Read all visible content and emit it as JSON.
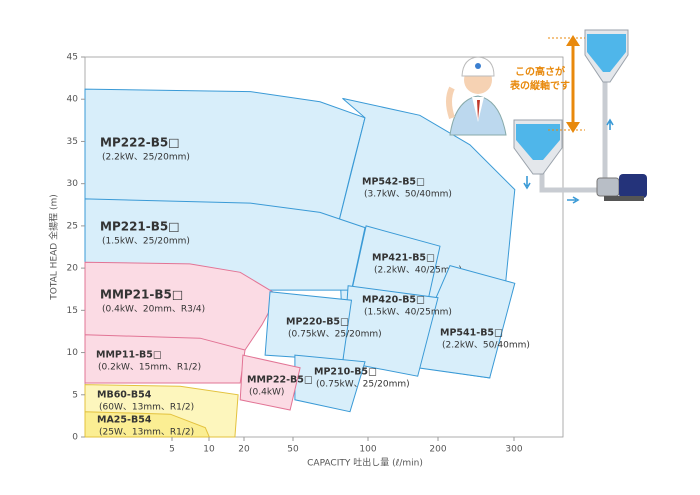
{
  "chart_data": {
    "type": "region",
    "xlabel": "CAPACITY 吐出し量 (ℓ/min)",
    "ylabel": "TOTAL HEAD 全揚程 (m)",
    "xlim": [
      0,
      360
    ],
    "ylim": [
      0,
      45
    ],
    "xticks": [
      5,
      10,
      20,
      50,
      100,
      200,
      300
    ],
    "yticks": [
      0,
      5,
      10,
      15,
      20,
      25,
      30,
      35,
      40,
      45
    ],
    "regions": [
      {
        "name": "MP222-B5□",
        "spec": "(2.2kW、25/20mm)",
        "color": "#3a9ad6",
        "fill": "#d8eefa",
        "x": [
          0,
          24,
          68,
          98,
          89,
          80,
          0
        ],
        "y": [
          41.2,
          40.9,
          39.7,
          37.8,
          31.6,
          25.1,
          25.1
        ]
      },
      {
        "name": "MP542-B5□",
        "spec": "(3.7kW、50/40mm)",
        "color": "#3a9ad6",
        "fill": "#d8eefa",
        "x": [
          83,
          174,
          242,
          301,
          288,
          268,
          174,
          83,
          80,
          98
        ],
        "y": [
          40.1,
          38.1,
          34.6,
          29.3,
          17.4,
          7.0,
          8.2,
          12.7,
          25.1,
          37.8
        ]
      },
      {
        "name": "MP221-B5□",
        "spec": "(1.5kW、25/20mm)",
        "color": "#3a9ad6",
        "fill": "#d8eefa",
        "x": [
          0,
          24,
          68,
          98,
          89,
          0
        ],
        "y": [
          28.2,
          27.7,
          26.6,
          24.8,
          17.4,
          17.4
        ]
      },
      {
        "name": "MP421-B5□",
        "spec": "(2.2kW、40/25mm)",
        "color": "#3a9ad6",
        "fill": "#d8eefa",
        "x": [
          98.7,
          202.6,
          185.7,
          89
        ],
        "y": [
          25.0,
          22.6,
          16.2,
          17.2
        ]
      },
      {
        "name": "MP541-B5□",
        "spec": "(2.2kW、50/40mm)",
        "color": "#3a9ad6",
        "fill": "#d8eefa",
        "x": [
          215.8,
          301,
          268,
          171,
          195.7
        ],
        "y": [
          20.3,
          18.2,
          7.0,
          8.2,
          16.2
        ]
      },
      {
        "name": "MP420-B5□",
        "spec": "(1.5kW、40/25mm)",
        "color": "#3a9ad6",
        "fill": "#d8eefa",
        "x": [
          86.7,
          200,
          171,
          83.3
        ],
        "y": [
          17.9,
          16.5,
          7.2,
          8.9
        ]
      },
      {
        "name": "MMP21-B5□",
        "spec": "(0.4kW、20mm、R3/4)",
        "color": "#e27495",
        "fill": "#fbdbe4",
        "x": [
          0,
          7.4,
          18.9,
          40.8,
          31,
          20.6,
          0
        ],
        "y": [
          20.7,
          20.5,
          19.5,
          16.8,
          13.3,
          10.3,
          10.3
        ]
      },
      {
        "name": "MP220-B5□",
        "spec": "(0.75kW、25/20mm)",
        "color": "#3a9ad6",
        "fill": "#d8eefa",
        "x": [
          35.9,
          89,
          83.3,
          32.9
        ],
        "y": [
          17.2,
          16.2,
          9.1,
          9.7
        ]
      },
      {
        "name": "MP210-B5□",
        "spec": "(0.75kW、25/20mm)",
        "color": "#3a9ad6",
        "fill": "#d8eefa",
        "x": [
          51.3,
          98,
          88,
          51.3
        ],
        "y": [
          9.7,
          8.9,
          3.0,
          4.4
        ]
      },
      {
        "name": "MMP11-B5□",
        "spec": "(0.2kW、15mm、R1/2)",
        "color": "#e27495",
        "fill": "#fbdbe4",
        "x": [
          0,
          8.8,
          20.6,
          18.9,
          0
        ],
        "y": [
          12.1,
          11.7,
          10.3,
          6.4,
          6.4
        ]
      },
      {
        "name": "MMP22-B5□",
        "spec": "(0.4kW)",
        "color": "#e27495",
        "fill": "#fbdbe4",
        "x": [
          19.7,
          54.7,
          48.2,
          18.9
        ],
        "y": [
          9.7,
          8.2,
          3.2,
          4.4
        ]
      },
      {
        "name": "MB60-B54",
        "spec": "(60W、13mm、R1/2)",
        "color": "#e3c23e",
        "fill": "#fdf6bd",
        "x": [
          0,
          6.1,
          18.3,
          17.4,
          0
        ],
        "y": [
          6.2,
          6.0,
          5.0,
          0,
          0
        ]
      },
      {
        "name": "MA25-B54",
        "spec": "(25W、13mm、R1/2)",
        "color": "#e3c23e",
        "fill": "#fbee93",
        "x": [
          0,
          4.9,
          9.5,
          10.1,
          0
        ],
        "y": [
          3.0,
          2.7,
          1.1,
          0,
          0
        ]
      }
    ],
    "annotations": [
      "この高さが",
      "表の縦軸です"
    ]
  }
}
